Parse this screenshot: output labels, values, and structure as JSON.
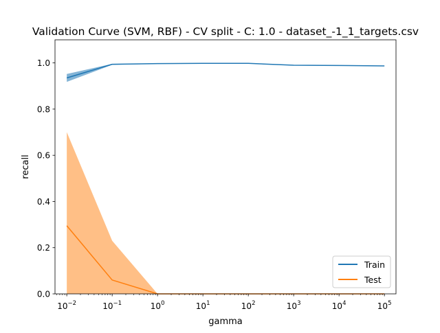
{
  "chart_data": {
    "type": "line",
    "title": "Validation Curve (SVM, RBF) - CV split - C: 1.0 - dataset_-1_1_targets.csv",
    "xlabel": "gamma",
    "ylabel": "recall",
    "xscale": "log",
    "xlim": [
      0.0055,
      180000
    ],
    "ylim": [
      0.0,
      1.1
    ],
    "x": [
      0.01,
      0.1,
      1,
      10,
      100,
      1000,
      10000,
      100000
    ],
    "x_tick_values": [
      0.01,
      0.1,
      1,
      10,
      100,
      1000,
      10000,
      100000
    ],
    "x_tick_labels": [
      {
        "base": "10",
        "exp": "−2"
      },
      {
        "base": "10",
        "exp": "−1"
      },
      {
        "base": "10",
        "exp": "0"
      },
      {
        "base": "10",
        "exp": "1"
      },
      {
        "base": "10",
        "exp": "2"
      },
      {
        "base": "10",
        "exp": "3"
      },
      {
        "base": "10",
        "exp": "4"
      },
      {
        "base": "10",
        "exp": "5"
      }
    ],
    "y_tick_values": [
      0.0,
      0.2,
      0.4,
      0.6,
      0.8,
      1.0
    ],
    "y_tick_labels": [
      "0.0",
      "0.2",
      "0.4",
      "0.6",
      "0.8",
      "1.0"
    ],
    "grid": false,
    "legend_position": "lower-right",
    "series": [
      {
        "name": "Train",
        "color": "#1f77b4",
        "values": [
          0.935,
          0.994,
          0.997,
          0.998,
          0.998,
          0.99,
          0.989,
          0.987
        ],
        "band_lower": [
          0.918,
          0.992,
          0.996,
          0.997,
          0.997,
          0.989,
          0.988,
          0.986
        ],
        "band_upper": [
          0.952,
          0.996,
          0.998,
          0.999,
          0.999,
          0.991,
          0.99,
          0.988
        ]
      },
      {
        "name": "Test",
        "color": "#ff7f0e",
        "values": [
          0.295,
          0.06,
          0.0,
          0.0,
          0.0,
          0.0,
          0.0,
          0.0
        ],
        "band_lower": [
          0.0,
          0.0,
          0.0,
          0.0,
          0.0,
          0.0,
          0.0,
          0.0
        ],
        "band_upper": [
          0.7,
          0.23,
          0.0,
          0.0,
          0.0,
          0.0,
          0.0,
          0.0
        ]
      }
    ]
  }
}
